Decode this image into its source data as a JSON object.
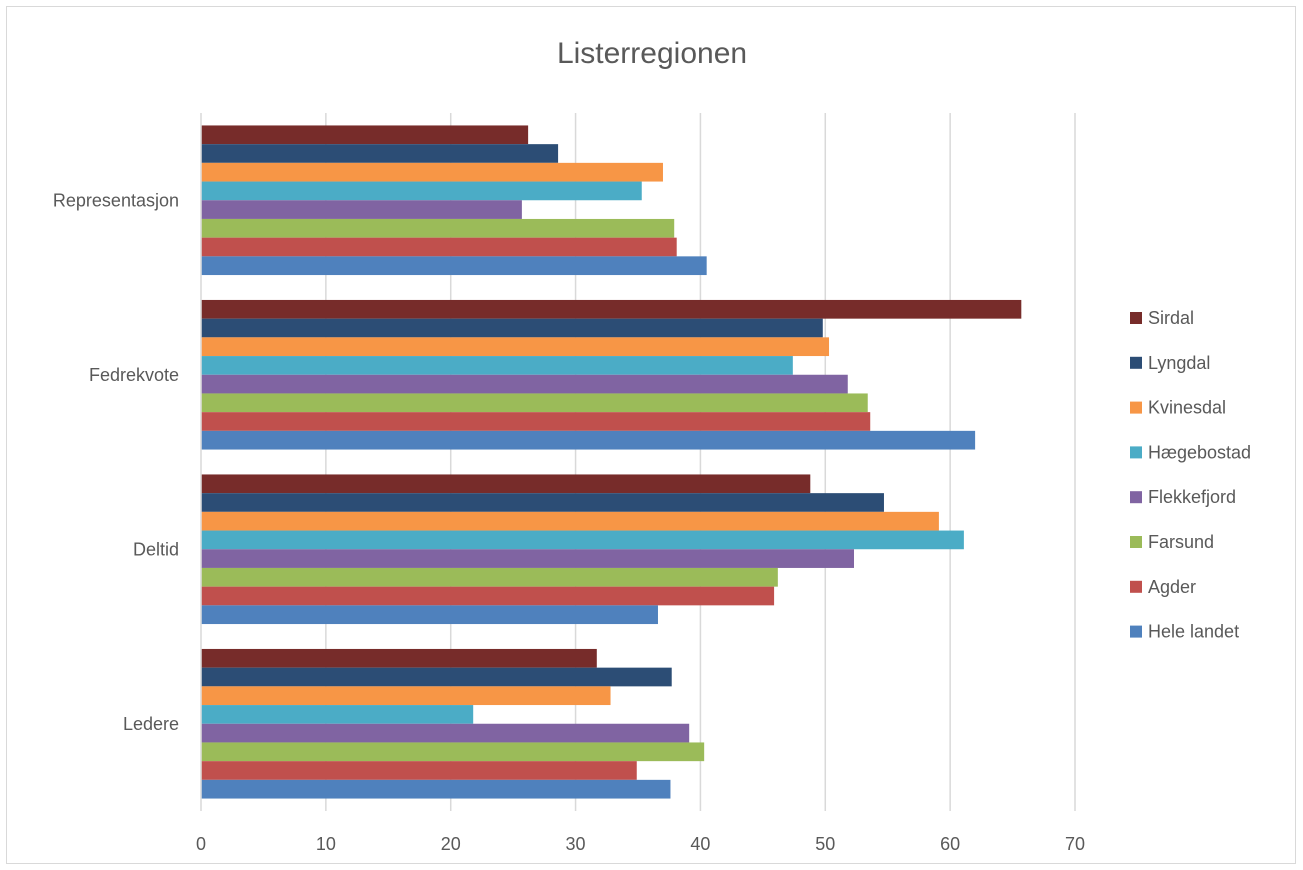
{
  "chart_data": {
    "type": "bar",
    "orientation": "horizontal",
    "title": "Listerregionen",
    "xlabel": "",
    "ylabel": "",
    "xlim": [
      0,
      70
    ],
    "x_ticks": [
      "0",
      "10",
      "20",
      "30",
      "40",
      "50",
      "60",
      "70"
    ],
    "grid": true,
    "legend_position": "right",
    "categories": [
      "Representasjon",
      "Fedrekvote",
      "Deltid",
      "Ledere"
    ],
    "series": [
      {
        "name": "Sirdal",
        "color": "#772C2A",
        "values": [
          26.2,
          65.7,
          48.8,
          31.7
        ]
      },
      {
        "name": "Lyngdal",
        "color": "#2C4D75",
        "values": [
          28.6,
          49.8,
          54.7,
          37.7
        ]
      },
      {
        "name": "Kvinesdal",
        "color": "#F79646",
        "values": [
          37.0,
          50.3,
          59.1,
          32.8
        ]
      },
      {
        "name": "Hægebostad",
        "color": "#4BACC6",
        "values": [
          35.3,
          47.4,
          61.1,
          21.8
        ]
      },
      {
        "name": "Flekkefjord",
        "color": "#8064A2",
        "values": [
          25.7,
          51.8,
          52.3,
          39.1
        ]
      },
      {
        "name": "Farsund",
        "color": "#9BBB59",
        "values": [
          37.9,
          53.4,
          46.2,
          40.3
        ]
      },
      {
        "name": "Agder",
        "color": "#C0504D",
        "values": [
          38.1,
          53.6,
          45.9,
          34.9
        ]
      },
      {
        "name": "Hele landet",
        "color": "#4F81BD",
        "values": [
          40.5,
          62.0,
          36.6,
          37.6
        ]
      }
    ]
  }
}
